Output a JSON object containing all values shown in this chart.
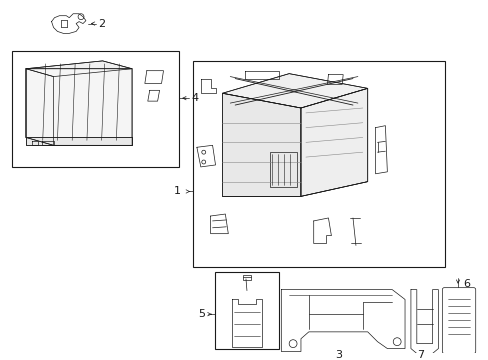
{
  "bg_color": "#ffffff",
  "line_color": "#1a1a1a",
  "fig_width": 4.89,
  "fig_height": 3.6
}
